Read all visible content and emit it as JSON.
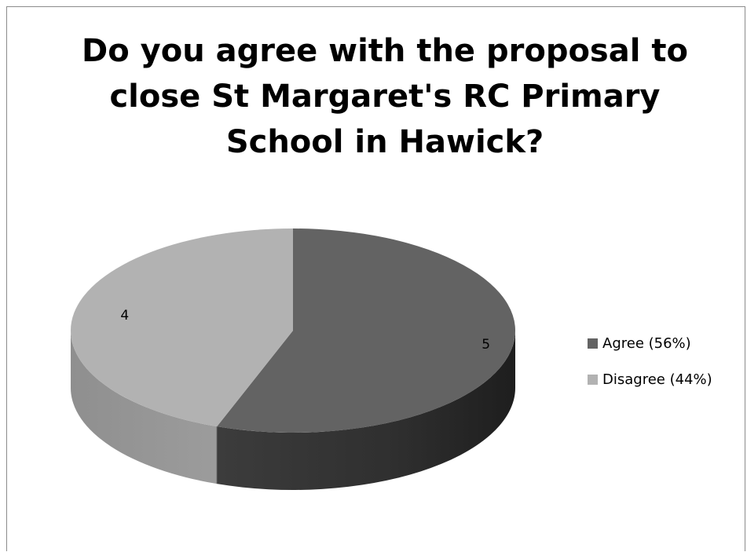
{
  "chart_data": {
    "type": "pie",
    "title": "Do you agree with the proposal to close St Margaret's RC Primary School in Hawick?",
    "title_lines": [
      "Do you agree with the proposal to",
      "close St Margaret's RC Primary",
      "School in Hawick?"
    ],
    "slices": [
      {
        "legend_label": "Agree (56%)",
        "value": 5,
        "data_label": "5",
        "color": "#636363",
        "side_color": "#2e2e2e"
      },
      {
        "legend_label": "Disagree (44%)",
        "value": 4,
        "data_label": "4",
        "color": "#b2b2b2",
        "side_color": "#878787"
      }
    ],
    "style": "3d",
    "legend_position": "right"
  }
}
